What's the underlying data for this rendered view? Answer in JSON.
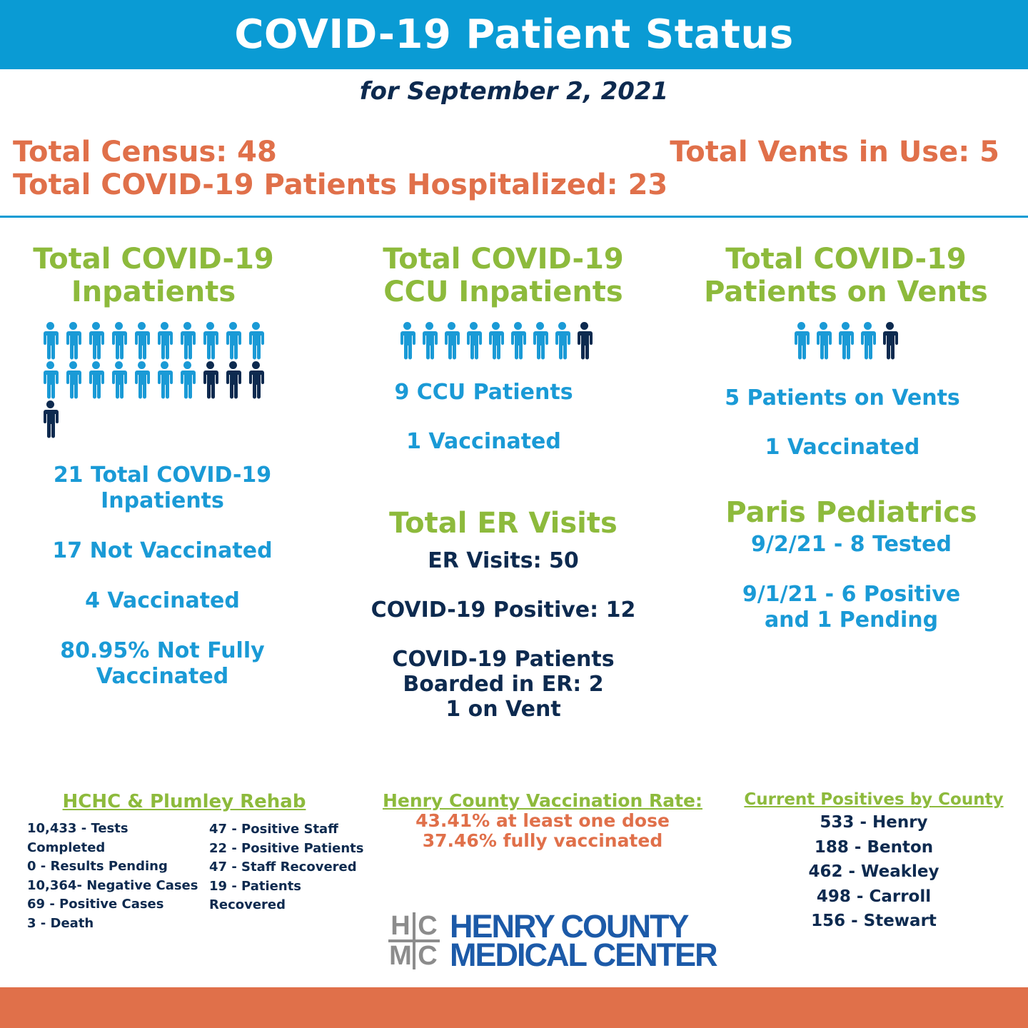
{
  "header": {
    "title": "COVID-19 Patient Status"
  },
  "date_line": "for September 2, 2021",
  "totals": {
    "census": "Total Census:  48",
    "hospitalized": "Total COVID-19 Patients Hospitalized: 23",
    "vents": "Total Vents in Use:  5"
  },
  "colors": {
    "accent_blue": "#0a9bd4",
    "navy": "#0d2a4f",
    "green": "#8dba3c",
    "orange": "#e0704a",
    "person_blue": "#1a9ad6",
    "person_navy": "#0d2a4f"
  },
  "inpatients": {
    "title_line1": "Total COVID-19",
    "title_line2": "Inpatients",
    "icon": "person-icon",
    "icons_unvaccinated": 17,
    "icons_vaccinated": 4,
    "line1a": "21 Total COVID-19",
    "line1b": "Inpatients",
    "not_vaccinated": "17 Not Vaccinated",
    "vaccinated": "4 Vaccinated",
    "pct_a": "80.95% Not Fully",
    "pct_b": "Vaccinated"
  },
  "ccu": {
    "title_line1": "Total COVID-19",
    "title_line2": "CCU Inpatients",
    "icons_unvaccinated": 8,
    "icons_vaccinated": 1,
    "patients": "9 CCU Patients",
    "vaccinated": "1 Vaccinated"
  },
  "er": {
    "title": "Total ER Visits",
    "visits": "ER Visits:  50",
    "positive": "COVID-19 Positive: 12",
    "boarded_a": "COVID-19 Patients",
    "boarded_b": "Boarded in ER:  2",
    "boarded_c": "1 on Vent"
  },
  "vents": {
    "title_line1": "Total COVID-19",
    "title_line2": "Patients on Vents",
    "icons_unvaccinated": 4,
    "icons_vaccinated": 1,
    "patients": "5 Patients on Vents",
    "vaccinated": "1 Vaccinated"
  },
  "pediatrics": {
    "title": "Paris Pediatrics",
    "line1": "9/2/21 - 8 Tested",
    "line2a": "9/1/21 - 6 Positive",
    "line2b": "and 1 Pending"
  },
  "rehab": {
    "title": "HCHC & Plumley Rehab",
    "left": [
      "10,433 - Tests Completed",
      "0 - Results Pending",
      "10,364- Negative Cases",
      "69 - Positive Cases",
      "3 - Death"
    ],
    "right": [
      "47 - Positive Staff",
      "22 - Positive Patients",
      "47 - Staff Recovered",
      "19 - Patients",
      "Recovered"
    ]
  },
  "vaccination": {
    "title": "Henry County Vaccination Rate:",
    "line1": "43.41% at least one dose",
    "line2": "37.46% fully vaccinated"
  },
  "counties": {
    "title": "Current Positives by County",
    "items": [
      "533 - Henry",
      "188 - Benton",
      "462 - Weakley",
      "498 - Carroll",
      "156 - Stewart"
    ]
  },
  "logo": {
    "letters": [
      "H",
      "C",
      "M",
      "C"
    ],
    "line1": "HENRY COUNTY",
    "line2": "MEDICAL CENTER"
  }
}
